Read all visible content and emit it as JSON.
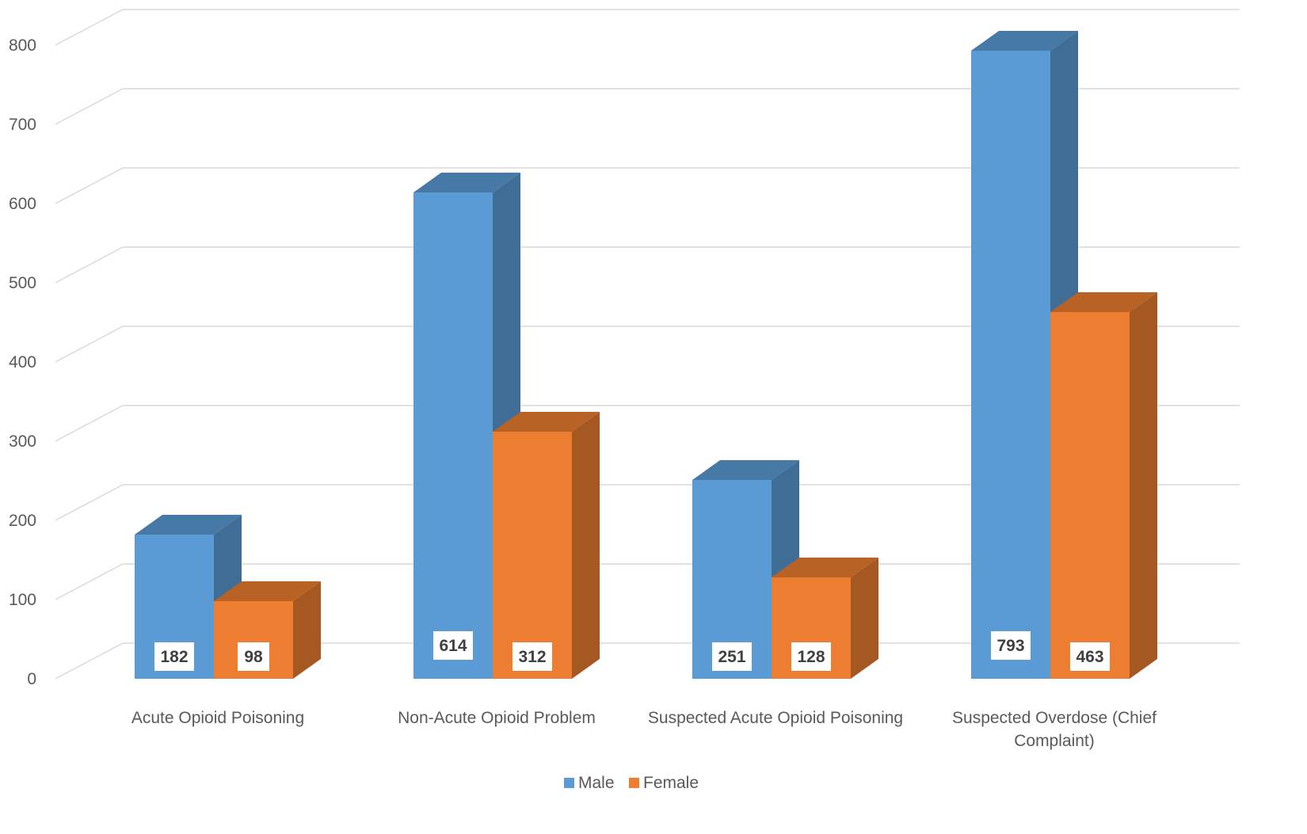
{
  "chart_data": {
    "type": "bar",
    "categories": [
      [
        "Acute Opioid Poisoning"
      ],
      [
        "Non-Acute Opioid Problem"
      ],
      [
        "Suspected Acute Opioid Poisoning"
      ],
      [
        "Suspected Overdose (Chief",
        "Complaint)"
      ]
    ],
    "series": [
      {
        "name": "Male",
        "values": [
          182,
          614,
          251,
          793
        ],
        "color": "#5B9BD5"
      },
      {
        "name": "Female",
        "values": [
          98,
          312,
          128,
          463
        ],
        "color": "#ED7D31"
      }
    ],
    "y_ticks": [
      "0",
      "100",
      "200",
      "300",
      "400",
      "500",
      "600",
      "700",
      "800"
    ],
    "ylim": [
      0,
      800
    ],
    "grid": true,
    "style": "3d-clustered-column",
    "legend": "bottom-center"
  }
}
